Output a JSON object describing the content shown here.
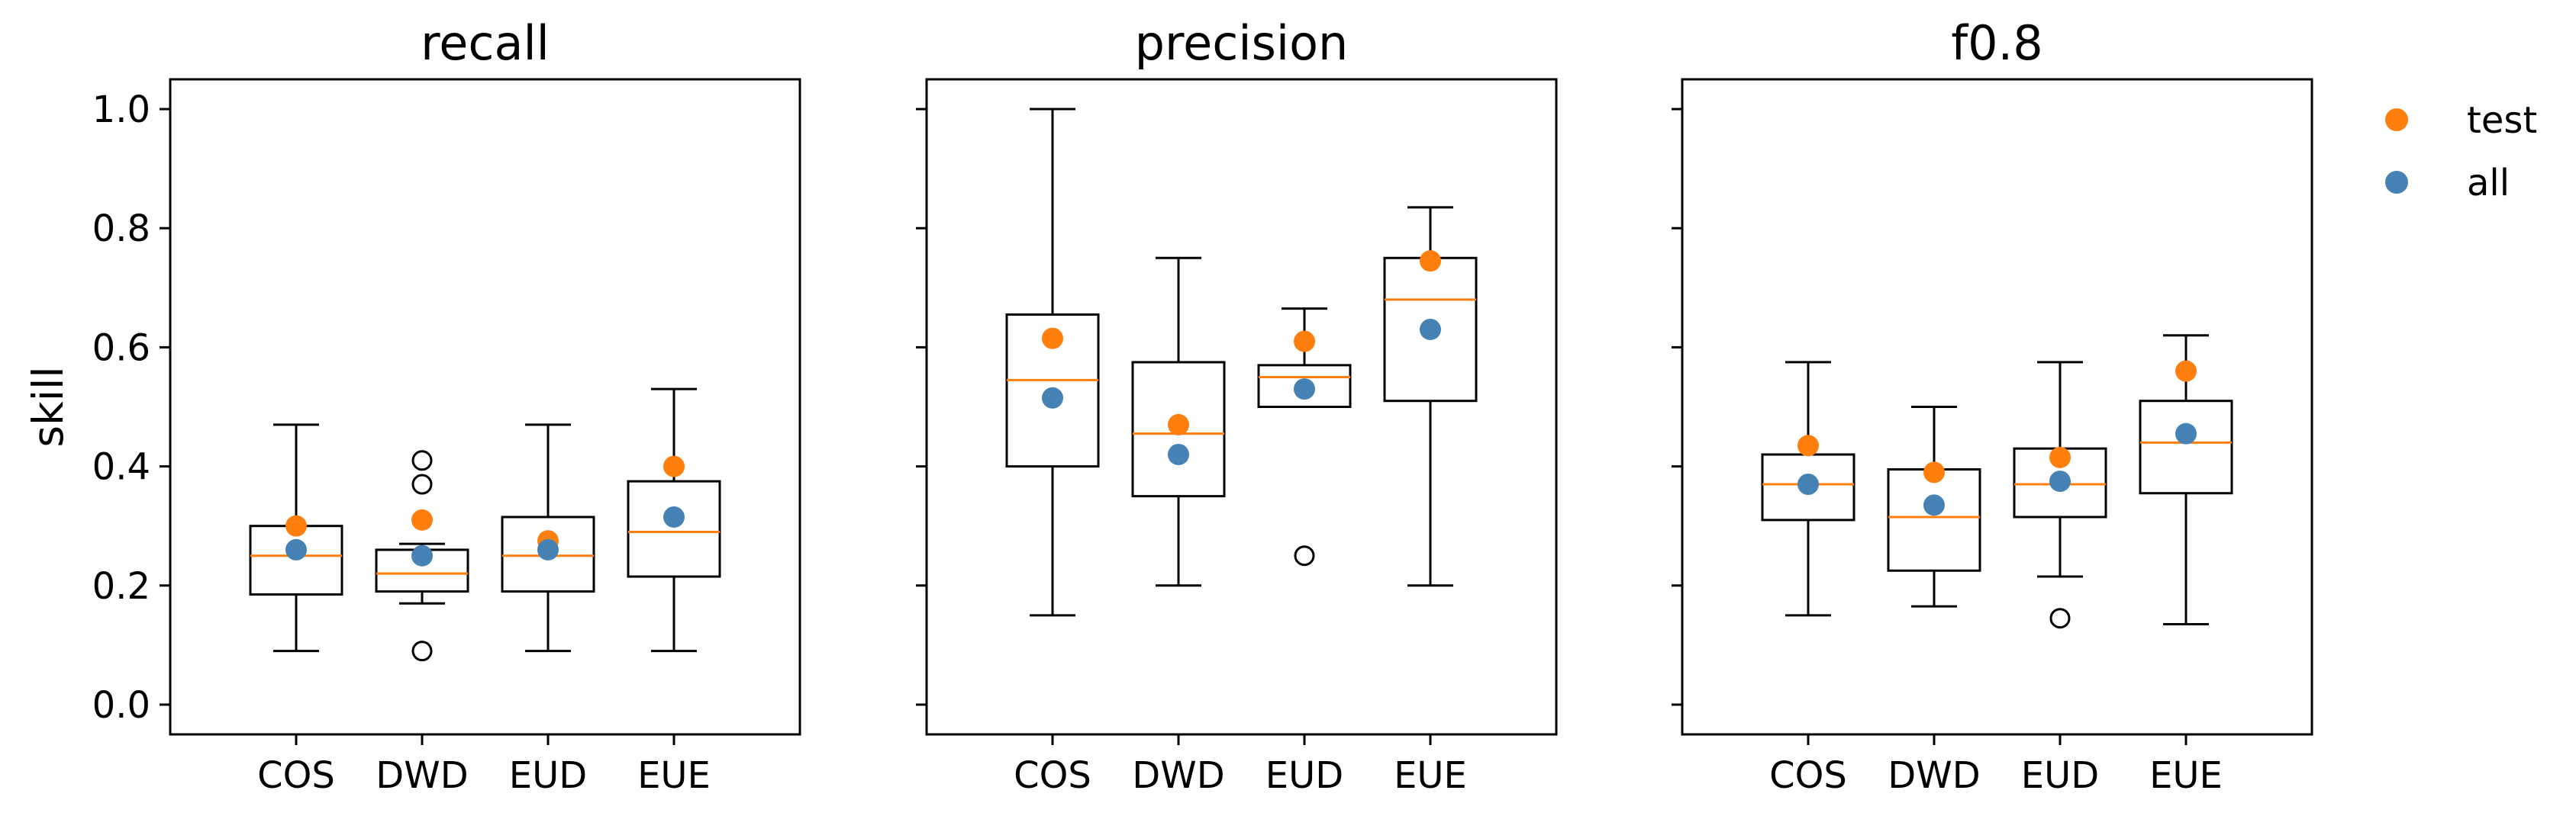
{
  "chart_data": {
    "type": "box",
    "ylabel": "skill",
    "ylim": [
      -0.05,
      1.05
    ],
    "yticks": [
      "0.0",
      "0.2",
      "0.4",
      "0.6",
      "0.8",
      "1.0"
    ],
    "categories": [
      "COS",
      "DWD",
      "EUD",
      "EUE"
    ],
    "legend": {
      "placement": "right-top",
      "entries": [
        {
          "label": "test",
          "color": "#ff7f0e"
        },
        {
          "label": "all",
          "color": "#4682b4"
        }
      ]
    },
    "panels": [
      {
        "title": "recall",
        "boxes": [
          {
            "category": "COS",
            "whisker_low": 0.09,
            "q1": 0.185,
            "median": 0.25,
            "q3": 0.3,
            "whisker_high": 0.47,
            "outliers": [],
            "test": 0.3,
            "all": 0.26
          },
          {
            "category": "DWD",
            "whisker_low": 0.17,
            "q1": 0.19,
            "median": 0.22,
            "q3": 0.26,
            "whisker_high": 0.27,
            "outliers": [
              0.09,
              0.37,
              0.41
            ],
            "test": 0.31,
            "all": 0.25
          },
          {
            "category": "EUD",
            "whisker_low": 0.09,
            "q1": 0.19,
            "median": 0.25,
            "q3": 0.315,
            "whisker_high": 0.47,
            "outliers": [],
            "test": 0.275,
            "all": 0.26
          },
          {
            "category": "EUE",
            "whisker_low": 0.09,
            "q1": 0.215,
            "median": 0.29,
            "q3": 0.375,
            "whisker_high": 0.53,
            "outliers": [],
            "test": 0.4,
            "all": 0.315
          }
        ]
      },
      {
        "title": "precision",
        "boxes": [
          {
            "category": "COS",
            "whisker_low": 0.15,
            "q1": 0.4,
            "median": 0.545,
            "q3": 0.655,
            "whisker_high": 1.0,
            "outliers": [],
            "test": 0.615,
            "all": 0.515
          },
          {
            "category": "DWD",
            "whisker_low": 0.2,
            "q1": 0.35,
            "median": 0.455,
            "q3": 0.575,
            "whisker_high": 0.75,
            "outliers": [],
            "test": 0.47,
            "all": 0.42
          },
          {
            "category": "EUD",
            "whisker_low": 0.5,
            "q1": 0.5,
            "median": 0.55,
            "q3": 0.57,
            "whisker_high": 0.665,
            "outliers": [
              0.25
            ],
            "test": 0.61,
            "all": 0.53
          },
          {
            "category": "EUE",
            "whisker_low": 0.2,
            "q1": 0.51,
            "median": 0.68,
            "q3": 0.75,
            "whisker_high": 0.835,
            "outliers": [],
            "test": 0.745,
            "all": 0.63
          }
        ]
      },
      {
        "title": "f0.8",
        "boxes": [
          {
            "category": "COS",
            "whisker_low": 0.15,
            "q1": 0.31,
            "median": 0.37,
            "q3": 0.42,
            "whisker_high": 0.575,
            "outliers": [],
            "test": 0.435,
            "all": 0.37
          },
          {
            "category": "DWD",
            "whisker_low": 0.165,
            "q1": 0.225,
            "median": 0.315,
            "q3": 0.395,
            "whisker_high": 0.5,
            "outliers": [],
            "test": 0.39,
            "all": 0.335
          },
          {
            "category": "EUD",
            "whisker_low": 0.215,
            "q1": 0.315,
            "median": 0.37,
            "q3": 0.43,
            "whisker_high": 0.575,
            "outliers": [
              0.145
            ],
            "test": 0.415,
            "all": 0.375
          },
          {
            "category": "EUE",
            "whisker_low": 0.135,
            "q1": 0.355,
            "median": 0.44,
            "q3": 0.51,
            "whisker_high": 0.62,
            "outliers": [],
            "test": 0.56,
            "all": 0.455
          }
        ]
      }
    ]
  }
}
